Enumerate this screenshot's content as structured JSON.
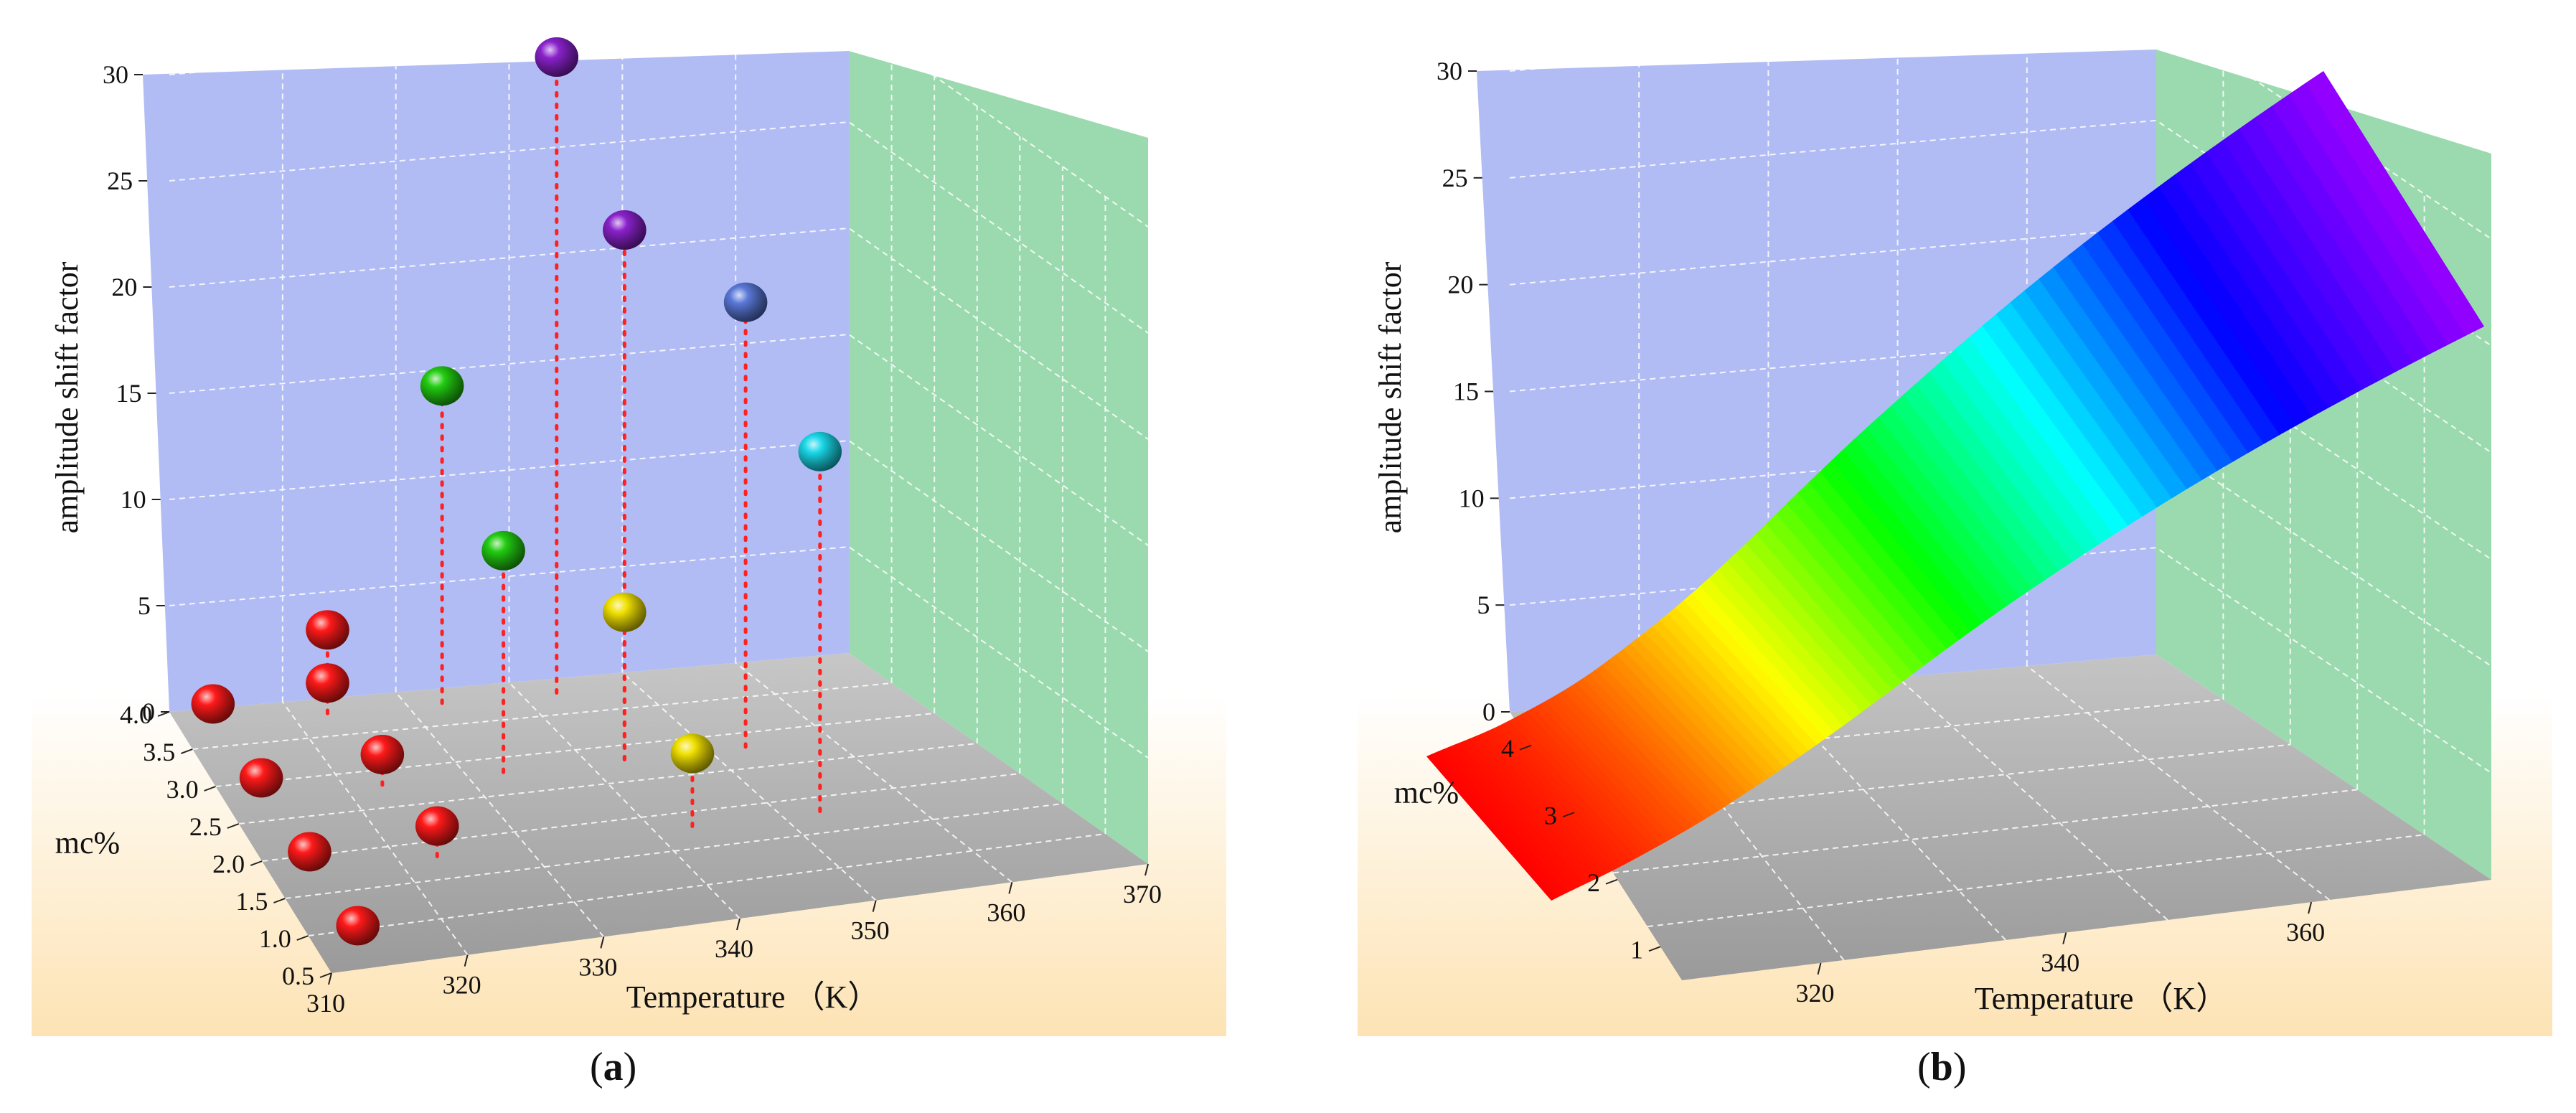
{
  "chart_data": [
    {
      "type": "scatter3d",
      "caption": "a",
      "zlabel": "amplitude shift factor",
      "xlabel": "Temperature （K）",
      "ylabel": "mc%",
      "xlim": [
        310,
        370
      ],
      "ylim": [
        0.5,
        4.0
      ],
      "zlim": [
        0,
        30
      ],
      "xticks": [
        "310",
        "320",
        "330",
        "340",
        "350",
        "360",
        "370"
      ],
      "yticks": [
        "0.5",
        "1.0",
        "1.5",
        "2.0",
        "2.5",
        "3.0",
        "3.5",
        "4.0"
      ],
      "zticks": [
        "0",
        "5",
        "10",
        "15",
        "20",
        "25",
        "30"
      ],
      "points": [
        {
          "x": 313,
          "y": 0.8,
          "z": 1.0,
          "color": "#ff1a1a"
        },
        {
          "x": 313,
          "y": 1.8,
          "z": 1.0,
          "color": "#ff1a1a"
        },
        {
          "x": 313,
          "y": 2.8,
          "z": 1.0,
          "color": "#ff1a1a"
        },
        {
          "x": 313,
          "y": 3.8,
          "z": 1.0,
          "color": "#ff1a1a"
        },
        {
          "x": 323,
          "y": 1.8,
          "z": 1.5,
          "color": "#ff1a1a"
        },
        {
          "x": 323,
          "y": 2.8,
          "z": 1.5,
          "color": "#ff1a1a"
        },
        {
          "x": 323,
          "y": 3.8,
          "z": 1.5,
          "color": "#ff1a1a"
        },
        {
          "x": 323,
          "y": 3.8,
          "z": 4.0,
          "color": "#ff1a1a"
        },
        {
          "x": 333,
          "y": 3.8,
          "z": 15.0,
          "color": "#22cc11"
        },
        {
          "x": 333,
          "y": 2.8,
          "z": 10.5,
          "color": "#22cc11"
        },
        {
          "x": 343,
          "y": 2.8,
          "z": 7.0,
          "color": "#f0e000"
        },
        {
          "x": 343,
          "y": 3.8,
          "z": 30.0,
          "color": "#8a22cc"
        },
        {
          "x": 343,
          "y": 1.8,
          "z": 3.5,
          "color": "#f0e000"
        },
        {
          "x": 343,
          "y": 2.8,
          "z": 25.0,
          "color": "#8a22cc"
        },
        {
          "x": 353,
          "y": 2.8,
          "z": 21.0,
          "color": "#5a78d8"
        },
        {
          "x": 353,
          "y": 1.8,
          "z": 17.0,
          "color": "#1ad8e8"
        }
      ]
    },
    {
      "type": "surface3d",
      "caption": "b",
      "zlabel": "amplitude shift factor",
      "xlabel": "Temperature （K）",
      "ylabel": "mc%",
      "xlim": [
        310,
        370
      ],
      "ylim": [
        0.5,
        4.5
      ],
      "zlim": [
        0,
        30
      ],
      "xticks": [
        "320",
        "340",
        "360"
      ],
      "yticks": [
        "1",
        "2",
        "3",
        "4"
      ],
      "zticks": [
        "0",
        "5",
        "10",
        "15",
        "20",
        "25",
        "30"
      ],
      "surface_z_along_temperature": [
        0,
        1,
        3,
        7,
        14,
        22,
        30
      ],
      "colormap": [
        "#ff0000",
        "#ffff00",
        "#00ff00",
        "#00ffff",
        "#0000ff",
        "#9900ff"
      ]
    }
  ]
}
